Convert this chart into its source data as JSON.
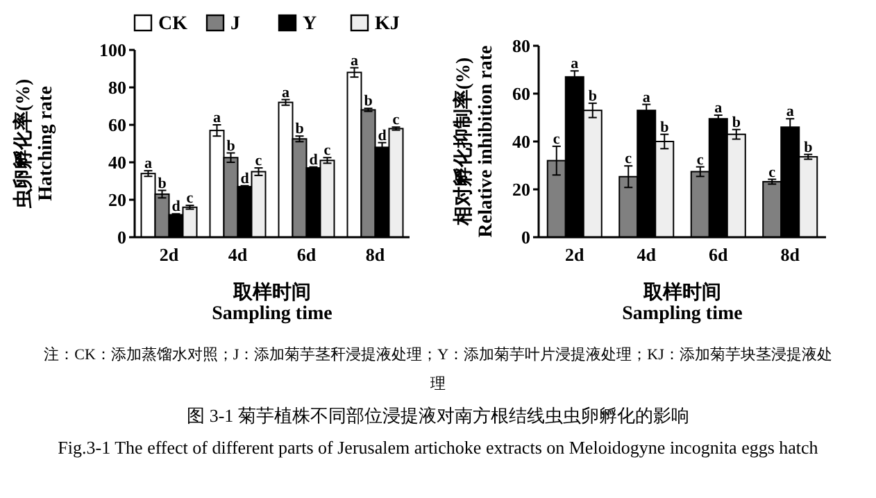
{
  "chart_data": [
    {
      "type": "bar",
      "categories": [
        "2d",
        "4d",
        "6d",
        "8d"
      ],
      "ylabel": "虫卵孵化率(%)\nHatching rate",
      "xlabel": "取样时间\nSampling time",
      "ylim": [
        0,
        100
      ],
      "yticks": [
        0,
        20,
        40,
        60,
        80,
        100
      ],
      "legend": "top",
      "series": [
        {
          "name": "CK",
          "color": "#ffffff",
          "values": [
            34,
            57,
            72,
            88
          ],
          "errors": [
            1.5,
            3,
            1.5,
            2.5
          ],
          "value_labels": [
            "a",
            "a",
            "a",
            "a"
          ]
        },
        {
          "name": "J",
          "color": "#808080",
          "values": [
            23,
            42.5,
            52.5,
            68
          ],
          "errors": [
            2,
            2.5,
            1.5,
            0.8
          ],
          "value_labels": [
            "b",
            "b",
            "b",
            "b"
          ]
        },
        {
          "name": "Y",
          "color": "#000000",
          "values": [
            12,
            27,
            37,
            48
          ],
          "errors": [
            0.5,
            0.5,
            0.5,
            2.5
          ],
          "value_labels": [
            "d",
            "d",
            "d",
            "d"
          ]
        },
        {
          "name": "KJ",
          "color": "#eeeeee",
          "values": [
            16,
            35,
            41,
            58
          ],
          "errors": [
            1,
            2,
            1.5,
            0.8
          ],
          "value_labels": [
            "c",
            "c",
            "c",
            "c"
          ]
        }
      ],
      "annotations": [
        "注：CK：添加蒸馏水对照；J：添加菊芋茎秆浸提液处理；Y：添加菊芋叶片浸提液处理；KJ：添加菊芋块茎浸提液处理",
        "图 3-1  菊芋植株不同部位浸提液对南方根结线虫虫卵孵化的影响",
        "Fig.3-1 The effect of different parts of Jerusalem artichoke extracts on Meloidogyne incognita eggs hatch"
      ]
    },
    {
      "type": "bar",
      "categories": [
        "2d",
        "4d",
        "6d",
        "8d"
      ],
      "ylabel": "相对孵化抑制率(%)\nRelative inhibition rate",
      "xlabel": "取样时间\nSampling time",
      "ylim": [
        0,
        80
      ],
      "yticks": [
        0,
        20,
        40,
        60,
        80
      ],
      "series": [
        {
          "color": "#808080",
          "values": [
            32,
            25.3,
            27.4,
            23.2
          ],
          "errors": [
            6,
            4.5,
            2,
            1
          ],
          "value_labels": [
            "c",
            "c",
            "c",
            "c"
          ]
        },
        {
          "color": "#000000",
          "values": [
            67,
            53,
            49.5,
            46
          ],
          "errors": [
            2.5,
            2.5,
            1.5,
            3.5
          ],
          "value_labels": [
            "a",
            "a",
            "a",
            "a"
          ]
        },
        {
          "color": "#eeeeee",
          "values": [
            53,
            40,
            43,
            33.6
          ],
          "errors": [
            3,
            3,
            2,
            1
          ],
          "value_labels": [
            "b",
            "b",
            "b",
            "b"
          ]
        }
      ]
    }
  ]
}
